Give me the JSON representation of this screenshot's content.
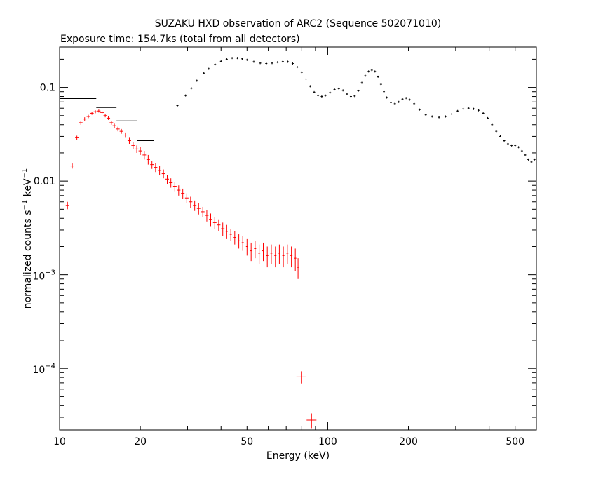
{
  "chart_data": {
    "type": "scatter",
    "title": "SUZAKU HXD observation of ARC2 (Sequence 502071010)",
    "subtitle": "Exposure time: 154.7ks (total from all detectors)",
    "xlabel": "Energy (keV)",
    "ylabel": {
      "prefix": "normalized counts s",
      "sup1": "−1",
      "mid": " keV",
      "sup2": "−1"
    },
    "xscale": "log",
    "yscale": "log",
    "xlim": [
      10,
      600
    ],
    "ylim": [
      2.2e-05,
      0.27
    ],
    "x_ticks": [
      {
        "value": 10,
        "label": "10"
      },
      {
        "value": 20,
        "label": "20"
      },
      {
        "value": 50,
        "label": "50"
      },
      {
        "value": 100,
        "label": "100"
      },
      {
        "value": 200,
        "label": "200"
      },
      {
        "value": 500,
        "label": "500"
      }
    ],
    "y_ticks": [
      {
        "value": 0.1,
        "label": "0.1"
      },
      {
        "value": 0.01,
        "label": "0.01"
      },
      {
        "value": 0.001,
        "base": "10",
        "exp": "−3"
      },
      {
        "value": 0.0001,
        "base": "10",
        "exp": "−4"
      }
    ],
    "series": [
      {
        "color": "#000000",
        "segments": [
          {
            "x": [
              10,
              13.7
            ],
            "y": [
              0.076,
              0.076
            ]
          },
          {
            "x": [
              13.7,
              16.3
            ],
            "y": [
              0.061,
              0.061
            ]
          },
          {
            "x": [
              16.3,
              19.5
            ],
            "y": [
              0.044,
              0.044
            ]
          },
          {
            "x": [
              19.5,
              22.5
            ],
            "y": [
              0.027,
              0.027
            ]
          },
          {
            "x": [
              22.5,
              25.5
            ],
            "y": [
              0.031,
              0.031
            ]
          }
        ],
        "points": [
          [
            27.5,
            0.064
          ],
          [
            29.5,
            0.082
          ],
          [
            31,
            0.098
          ],
          [
            32.5,
            0.118
          ],
          [
            34.5,
            0.142
          ],
          [
            36,
            0.158
          ],
          [
            38,
            0.176
          ],
          [
            40,
            0.19
          ],
          [
            42,
            0.2
          ],
          [
            44,
            0.206
          ],
          [
            46,
            0.206
          ],
          [
            48,
            0.202
          ],
          [
            50,
            0.197
          ],
          [
            53,
            0.188
          ],
          [
            56,
            0.182
          ],
          [
            59,
            0.18
          ],
          [
            62,
            0.182
          ],
          [
            65,
            0.186
          ],
          [
            68,
            0.189
          ],
          [
            71,
            0.188
          ],
          [
            74,
            0.18
          ],
          [
            77,
            0.165
          ],
          [
            80,
            0.145
          ],
          [
            83,
            0.123
          ],
          [
            86,
            0.103
          ],
          [
            89,
            0.089
          ],
          [
            92,
            0.082
          ],
          [
            95,
            0.08
          ],
          [
            98,
            0.082
          ],
          [
            102,
            0.088
          ],
          [
            106,
            0.095
          ],
          [
            110,
            0.097
          ],
          [
            114,
            0.093
          ],
          [
            118,
            0.085
          ],
          [
            122,
            0.08
          ],
          [
            126,
            0.081
          ],
          [
            130,
            0.092
          ],
          [
            134,
            0.112
          ],
          [
            138,
            0.133
          ],
          [
            142,
            0.148
          ],
          [
            146,
            0.153
          ],
          [
            150,
            0.148
          ],
          [
            154,
            0.13
          ],
          [
            158,
            0.108
          ],
          [
            162,
            0.09
          ],
          [
            166,
            0.078
          ],
          [
            172,
            0.069
          ],
          [
            178,
            0.067
          ],
          [
            184,
            0.07
          ],
          [
            190,
            0.075
          ],
          [
            196,
            0.077
          ],
          [
            202,
            0.074
          ],
          [
            210,
            0.067
          ],
          [
            220,
            0.058
          ],
          [
            232,
            0.051
          ],
          [
            245,
            0.049
          ],
          [
            260,
            0.048
          ],
          [
            275,
            0.049
          ],
          [
            290,
            0.052
          ],
          [
            305,
            0.056
          ],
          [
            320,
            0.059
          ],
          [
            335,
            0.06
          ],
          [
            350,
            0.059
          ],
          [
            365,
            0.057
          ],
          [
            380,
            0.053
          ],
          [
            395,
            0.047
          ],
          [
            410,
            0.04
          ],
          [
            425,
            0.034
          ],
          [
            440,
            0.03
          ],
          [
            455,
            0.027
          ],
          [
            470,
            0.025
          ],
          [
            485,
            0.024
          ],
          [
            500,
            0.024
          ],
          [
            515,
            0.023
          ],
          [
            530,
            0.021
          ],
          [
            545,
            0.019
          ],
          [
            560,
            0.017
          ],
          [
            575,
            0.016
          ],
          [
            590,
            0.017
          ]
        ]
      },
      {
        "color": "#ff0000",
        "points": [
          [
            10.7,
            0.0055,
            0.0005
          ],
          [
            11.15,
            0.0145,
            0.0009
          ],
          [
            11.6,
            0.029,
            0.0015
          ],
          [
            12.0,
            0.042,
            0.002
          ],
          [
            12.4,
            0.046,
            0.002
          ],
          [
            12.8,
            0.049,
            0.002
          ],
          [
            13.2,
            0.053,
            0.002
          ],
          [
            13.6,
            0.055,
            0.002
          ],
          [
            14.0,
            0.056,
            0.002
          ],
          [
            14.4,
            0.054,
            0.002
          ],
          [
            14.8,
            0.05,
            0.002
          ],
          [
            15.2,
            0.047,
            0.002
          ],
          [
            15.6,
            0.042,
            0.002
          ],
          [
            16.0,
            0.039,
            0.002
          ],
          [
            16.5,
            0.036,
            0.002
          ],
          [
            17.0,
            0.034,
            0.002
          ],
          [
            17.6,
            0.031,
            0.002
          ],
          [
            18.2,
            0.027,
            0.002
          ],
          [
            18.8,
            0.024,
            0.002
          ],
          [
            19.4,
            0.022,
            0.002
          ],
          [
            20.0,
            0.021,
            0.002
          ],
          [
            20.7,
            0.019,
            0.002
          ],
          [
            21.4,
            0.017,
            0.002
          ],
          [
            22.1,
            0.015,
            0.0015
          ],
          [
            22.8,
            0.014,
            0.0015
          ],
          [
            23.6,
            0.013,
            0.0015
          ],
          [
            24.4,
            0.012,
            0.0013
          ],
          [
            25.2,
            0.0105,
            0.0012
          ],
          [
            26.0,
            0.0096,
            0.0011
          ],
          [
            26.9,
            0.0088,
            0.001
          ],
          [
            27.8,
            0.008,
            0.001
          ],
          [
            28.8,
            0.0074,
            0.0009
          ],
          [
            29.8,
            0.0066,
            0.0008
          ],
          [
            30.8,
            0.006,
            0.0008
          ],
          [
            31.9,
            0.0055,
            0.0007
          ],
          [
            33.0,
            0.0051,
            0.0007
          ],
          [
            34.2,
            0.0047,
            0.0006
          ],
          [
            35.4,
            0.0043,
            0.0006
          ],
          [
            36.6,
            0.0039,
            0.0006
          ],
          [
            37.9,
            0.0036,
            0.0005
          ],
          [
            39.2,
            0.0034,
            0.0005
          ],
          [
            40.6,
            0.0031,
            0.0005
          ],
          [
            42.0,
            0.0029,
            0.0005
          ],
          [
            43.5,
            0.0027,
            0.0004
          ],
          [
            45.0,
            0.0025,
            0.0004
          ],
          [
            46.6,
            0.0023,
            0.0004
          ],
          [
            48.2,
            0.0022,
            0.0004
          ],
          [
            50.0,
            0.002,
            0.0004
          ],
          [
            51.8,
            0.0018,
            0.0004
          ],
          [
            53.6,
            0.0019,
            0.0004
          ],
          [
            55.5,
            0.0017,
            0.0004
          ],
          [
            57.5,
            0.0018,
            0.0004
          ],
          [
            59.5,
            0.0016,
            0.0004
          ],
          [
            61.6,
            0.0017,
            0.0004
          ],
          [
            63.8,
            0.0016,
            0.0004
          ],
          [
            66.0,
            0.0017,
            0.0004
          ],
          [
            68.3,
            0.0016,
            0.0004
          ],
          [
            70.7,
            0.0017,
            0.0004
          ],
          [
            73.2,
            0.0016,
            0.0004
          ],
          [
            75.7,
            0.0015,
            0.0004
          ],
          [
            77.5,
            0.0012,
            0.0003
          ],
          [
            79.7,
            8.1e-05,
            1.2e-05
          ],
          [
            87.0,
            2.8e-05,
            5e-06
          ]
        ]
      }
    ],
    "grid": false,
    "legend": "none"
  }
}
